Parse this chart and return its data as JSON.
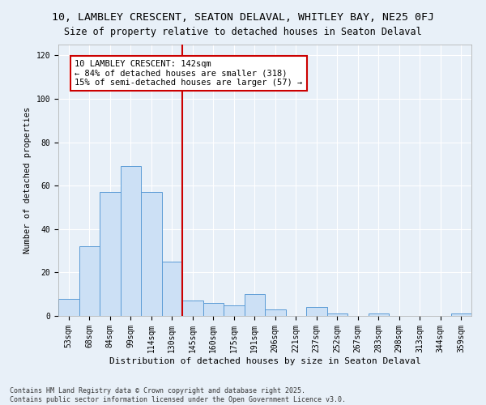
{
  "title1": "10, LAMBLEY CRESCENT, SEATON DELAVAL, WHITLEY BAY, NE25 0FJ",
  "title2": "Size of property relative to detached houses in Seaton Delaval",
  "xlabel": "Distribution of detached houses by size in Seaton Delaval",
  "ylabel": "Number of detached properties",
  "bin_labels": [
    "53sqm",
    "68sqm",
    "84sqm",
    "99sqm",
    "114sqm",
    "130sqm",
    "145sqm",
    "160sqm",
    "175sqm",
    "191sqm",
    "206sqm",
    "221sqm",
    "237sqm",
    "252sqm",
    "267sqm",
    "283sqm",
    "298sqm",
    "313sqm",
    "344sqm",
    "359sqm"
  ],
  "bar_values": [
    8,
    32,
    57,
    69,
    57,
    25,
    7,
    6,
    5,
    10,
    3,
    0,
    4,
    1,
    0,
    1,
    0,
    0,
    0,
    1
  ],
  "bar_color": "#cce0f5",
  "bar_edge_color": "#5b9bd5",
  "bg_color": "#e8f0f8",
  "grid_color": "#ffffff",
  "vline_bin": 6,
  "vline_color": "#cc0000",
  "annotation_text": "10 LAMBLEY CRESCENT: 142sqm\n← 84% of detached houses are smaller (318)\n15% of semi-detached houses are larger (57) →",
  "annotation_box_color": "#cc0000",
  "annotation_text_color": "#000000",
  "footer1": "Contains HM Land Registry data © Crown copyright and database right 2025.",
  "footer2": "Contains public sector information licensed under the Open Government Licence v3.0.",
  "ylim": [
    0,
    125
  ],
  "yticks": [
    0,
    20,
    40,
    60,
    80,
    100,
    120
  ],
  "title1_fontsize": 9.5,
  "title2_fontsize": 8.5,
  "xlabel_fontsize": 8,
  "ylabel_fontsize": 7.5,
  "tick_fontsize": 7,
  "annotation_fontsize": 7.5,
  "footer_fontsize": 6
}
